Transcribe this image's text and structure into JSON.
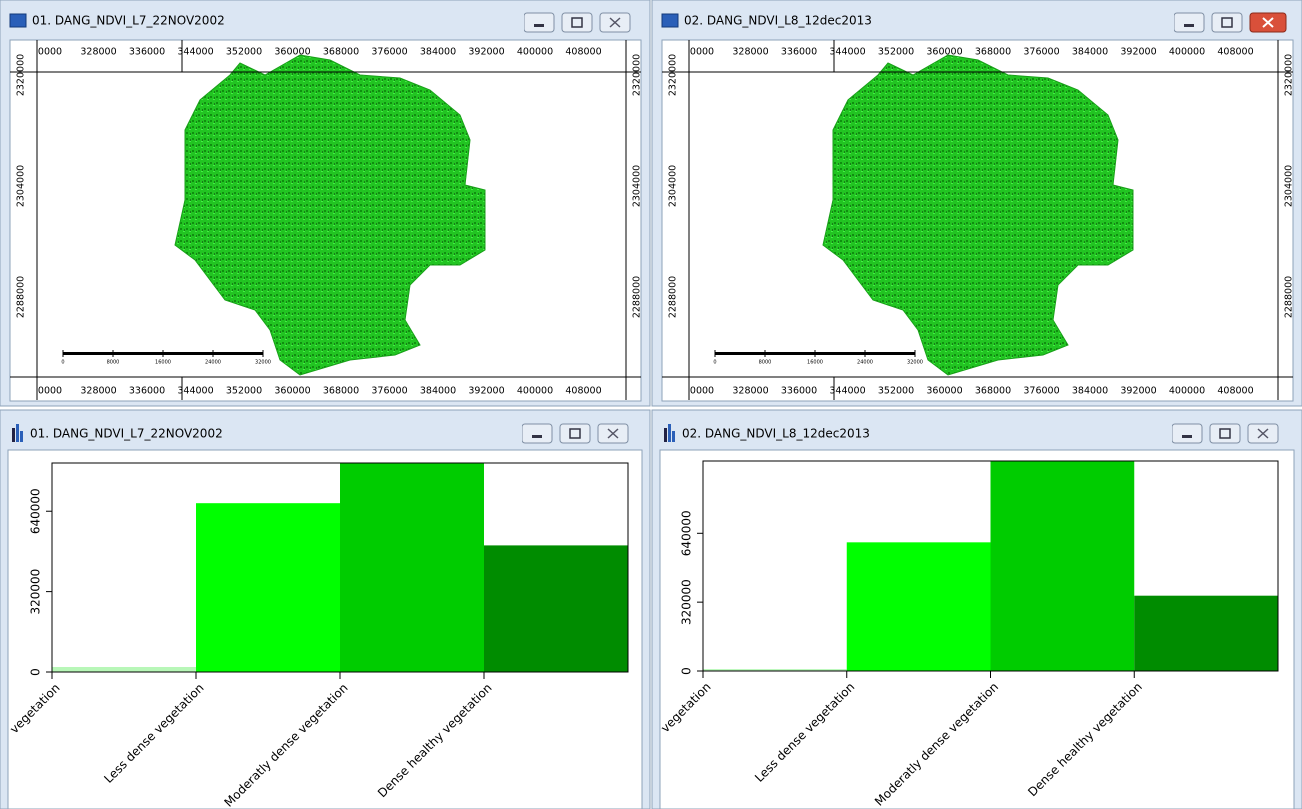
{
  "map_windows": [
    {
      "title": "01. DANG_NDVI_L7_22NOV2002",
      "x_labels": [
        "0000",
        "328000",
        "336000",
        "344000",
        "352000",
        "360000",
        "368000",
        "376000",
        "384000",
        "392000",
        "400000",
        "408000"
      ],
      "y_labels": [
        "2320000",
        "2304000",
        "2288000"
      ],
      "scale_labels": [
        "0",
        "8000",
        "16000",
        "24000",
        "32000"
      ]
    },
    {
      "title": "02. DANG_NDVI_L8_12dec2013",
      "x_labels": [
        "0000",
        "328000",
        "336000",
        "344000",
        "352000",
        "360000",
        "368000",
        "376000",
        "384000",
        "392000",
        "400000",
        "408000"
      ],
      "y_labels": [
        "2320000",
        "2304000",
        "2288000"
      ],
      "scale_labels": [
        "0",
        "8000",
        "16000",
        "24000",
        "32000"
      ]
    }
  ],
  "chart_data": [
    {
      "type": "bar",
      "title": "01. DANG_NDVI_L7_22NOV2002",
      "categories": [
        "vegetation",
        "Less dense vegetation",
        "Moderatly dense vegetation",
        "Dense healthy vegetation"
      ],
      "values": [
        20000,
        672000,
        832000,
        504000
      ],
      "colors": [
        "#b8f7b8",
        "#00ff00",
        "#00cc00",
        "#008c00"
      ],
      "ylim": [
        0,
        832000
      ],
      "yticks": [
        0,
        320000,
        640000
      ]
    },
    {
      "type": "bar",
      "title": "02. DANG_NDVI_L8_12dec2013",
      "categories": [
        "vegetation",
        "Less dense vegetation",
        "Moderatly dense vegetation",
        "Dense healthy vegetation"
      ],
      "values": [
        9000,
        598000,
        976000,
        350000
      ],
      "colors": [
        "#b8f7b8",
        "#00ff00",
        "#00cc00",
        "#008c00"
      ],
      "ylim": [
        0,
        976000
      ],
      "yticks": [
        0,
        320000,
        640000
      ]
    }
  ]
}
